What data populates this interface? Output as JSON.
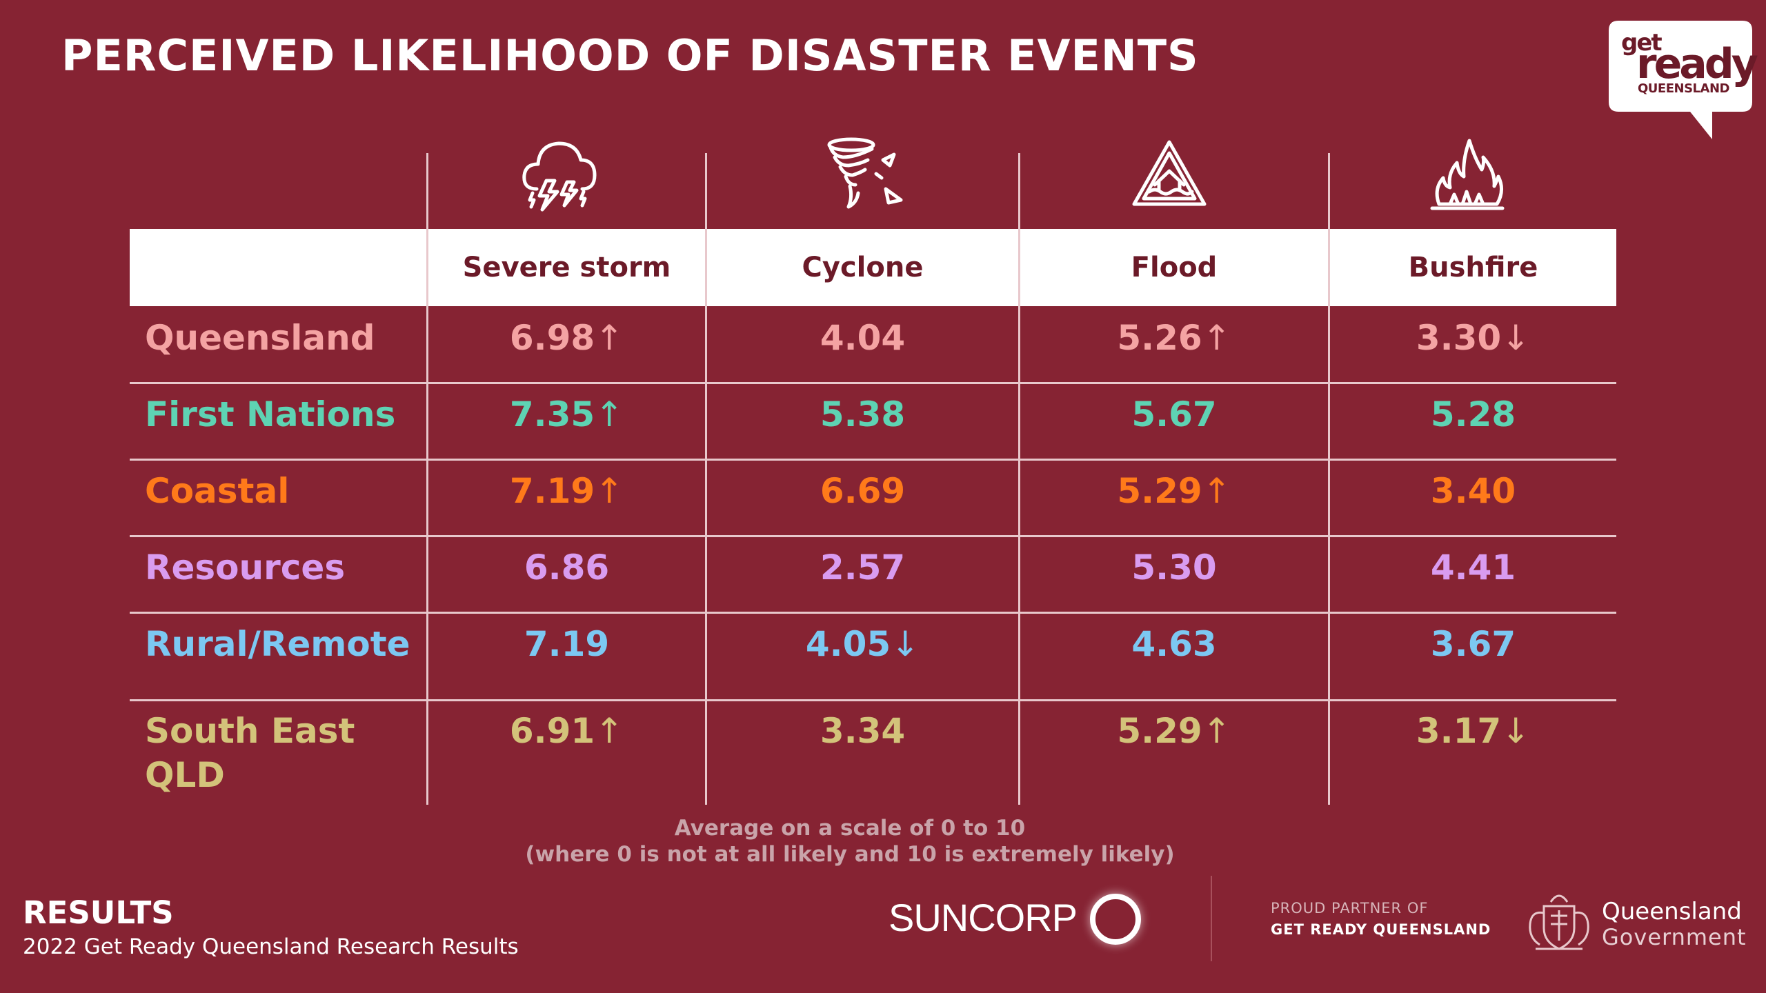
{
  "title": "PERCEIVED LIKELIHOOD OF DISASTER EVENTS",
  "logo": {
    "get": "get",
    "ready": "ready",
    "queensland": "QUEENSLAND"
  },
  "columns": [
    {
      "label": "Severe storm",
      "icon": "storm-cloud-icon"
    },
    {
      "label": "Cyclone",
      "icon": "cyclone-icon"
    },
    {
      "label": "Flood",
      "icon": "flood-warning-icon"
    },
    {
      "label": "Bushfire",
      "icon": "bushfire-icon"
    }
  ],
  "rows": [
    {
      "label_line1": "Queensland",
      "label_line2": "",
      "color": "#f4a3a3",
      "cells": [
        {
          "value": "6.98",
          "arrow": "↑"
        },
        {
          "value": "4.04",
          "arrow": ""
        },
        {
          "value": "5.26",
          "arrow": "↑"
        },
        {
          "value": "3.30",
          "arrow": "↓"
        }
      ]
    },
    {
      "label_line1": "First Nations",
      "label_line2": "",
      "color": "#5ed3b3",
      "cells": [
        {
          "value": "7.35",
          "arrow": "↑"
        },
        {
          "value": "5.38",
          "arrow": ""
        },
        {
          "value": "5.67",
          "arrow": ""
        },
        {
          "value": "5.28",
          "arrow": ""
        }
      ]
    },
    {
      "label_line1": "Coastal",
      "label_line2": "",
      "color": "#ff7a1a",
      "cells": [
        {
          "value": "7.19",
          "arrow": "↑"
        },
        {
          "value": "6.69",
          "arrow": ""
        },
        {
          "value": "5.29",
          "arrow": "↑"
        },
        {
          "value": "3.40",
          "arrow": ""
        }
      ]
    },
    {
      "label_line1": "Resources",
      "label_line2": "",
      "color": "#d99cf0",
      "cells": [
        {
          "value": "6.86",
          "arrow": ""
        },
        {
          "value": "2.57",
          "arrow": ""
        },
        {
          "value": "5.30",
          "arrow": ""
        },
        {
          "value": "4.41",
          "arrow": ""
        }
      ]
    },
    {
      "label_line1": "Rural/Remote",
      "label_line2": "",
      "color": "#7cc8f2",
      "cells": [
        {
          "value": "7.19",
          "arrow": ""
        },
        {
          "value": "4.05",
          "arrow": "↓"
        },
        {
          "value": "4.63",
          "arrow": ""
        },
        {
          "value": "3.67",
          "arrow": ""
        }
      ]
    },
    {
      "label_line1": "South East",
      "label_line2": "QLD",
      "color": "#d3c37a",
      "cells": [
        {
          "value": "6.91",
          "arrow": "↑"
        },
        {
          "value": "3.34",
          "arrow": ""
        },
        {
          "value": "5.29",
          "arrow": "↑"
        },
        {
          "value": "3.17",
          "arrow": "↓"
        }
      ]
    }
  ],
  "footnote": {
    "line1": "Average on a scale of 0 to 10",
    "line2": "(where 0 is not at all likely and 10 is extremely likely)"
  },
  "footer": {
    "results": "RESULTS",
    "subtitle": "2022 Get Ready Queensland Research Results",
    "suncorp": "SUNCORP",
    "partner_line1": "PROUD PARTNER OF",
    "partner_line2": "GET READY QUEENSLAND",
    "qg_line1": "Queensland",
    "qg_line2": "Government"
  }
}
